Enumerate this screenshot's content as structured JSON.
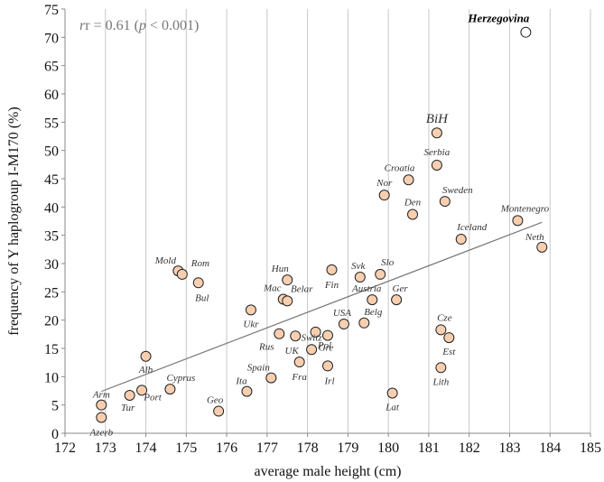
{
  "chart_data": {
    "type": "scatter",
    "title": "",
    "xlabel": "average male height (cm)",
    "ylabel": "frequency of Y haplogroup I-M170 (%)",
    "xlim": [
      172,
      185
    ],
    "ylim": [
      0,
      75
    ],
    "xticks": [
      "172",
      "173",
      "174",
      "175",
      "176",
      "177",
      "178",
      "179",
      "180",
      "181",
      "182",
      "183",
      "184",
      "185"
    ],
    "yticks": [
      "0",
      "5",
      "10",
      "15",
      "20",
      "25",
      "30",
      "35",
      "40",
      "45",
      "50",
      "55",
      "60",
      "65",
      "70",
      "75"
    ],
    "grid": "vertical",
    "annotation": {
      "r_text": "r = 0.61 (",
      "p_sym": "p",
      "p_rest": " < 0.001)"
    },
    "trendline": {
      "x": [
        172.9,
        183.8
      ],
      "y": [
        7.4,
        37.3
      ]
    },
    "marker_fill": "#f7cfb0",
    "outlier_fill": "#ffffff",
    "points": [
      {
        "label": "Arm",
        "x": 172.9,
        "y": 5.0
      },
      {
        "label": "Azerb",
        "x": 172.9,
        "y": 2.8
      },
      {
        "label": "Tur",
        "x": 173.6,
        "y": 6.7
      },
      {
        "label": "Port",
        "x": 173.9,
        "y": 7.6
      },
      {
        "label": "Alb",
        "x": 174.0,
        "y": 13.6
      },
      {
        "label": "Cyprus",
        "x": 174.6,
        "y": 7.8
      },
      {
        "label": "Mold",
        "x": 174.8,
        "y": 28.7
      },
      {
        "label": "Rom",
        "x": 174.9,
        "y": 28.1
      },
      {
        "label": "Bul",
        "x": 175.3,
        "y": 26.6
      },
      {
        "label": "Geo",
        "x": 175.8,
        "y": 3.9
      },
      {
        "label": "Ita",
        "x": 176.5,
        "y": 7.4
      },
      {
        "label": "Ukr",
        "x": 176.6,
        "y": 21.8
      },
      {
        "label": "Spain",
        "x": 177.1,
        "y": 9.8
      },
      {
        "label": "Rus",
        "x": 177.3,
        "y": 17.6
      },
      {
        "label": "Mac",
        "x": 177.4,
        "y": 23.7
      },
      {
        "label": "Hun",
        "x": 177.5,
        "y": 27.1
      },
      {
        "label": "Belar",
        "x": 177.5,
        "y": 23.4
      },
      {
        "label": "UK",
        "x": 177.7,
        "y": 17.2
      },
      {
        "label": "Fra",
        "x": 177.8,
        "y": 12.6
      },
      {
        "label": "Switz",
        "x": 178.1,
        "y": 14.8
      },
      {
        "label": "Pol",
        "x": 178.2,
        "y": 17.9
      },
      {
        "label": "Gre",
        "x": 178.5,
        "y": 17.3
      },
      {
        "label": "Irl",
        "x": 178.5,
        "y": 11.9
      },
      {
        "label": "Fin",
        "x": 178.6,
        "y": 28.9
      },
      {
        "label": "USA",
        "x": 178.9,
        "y": 19.3
      },
      {
        "label": "Svk",
        "x": 179.3,
        "y": 27.6
      },
      {
        "label": "Belg",
        "x": 179.4,
        "y": 19.5
      },
      {
        "label": "Austria",
        "x": 179.6,
        "y": 23.6
      },
      {
        "label": "Slo",
        "x": 179.8,
        "y": 28.1
      },
      {
        "label": "Lat",
        "x": 180.1,
        "y": 7.1
      },
      {
        "label": "Ger",
        "x": 180.2,
        "y": 23.6
      },
      {
        "label": "Nor",
        "x": 179.9,
        "y": 42.1
      },
      {
        "label": "Croatia",
        "x": 180.5,
        "y": 44.8
      },
      {
        "label": "Den",
        "x": 180.6,
        "y": 38.7
      },
      {
        "label": "BiH",
        "x": 181.2,
        "y": 53.1
      },
      {
        "label": "Serbia",
        "x": 181.2,
        "y": 47.4
      },
      {
        "label": "Lith",
        "x": 181.3,
        "y": 11.6
      },
      {
        "label": "Cze",
        "x": 181.3,
        "y": 18.3
      },
      {
        "label": "Sweden",
        "x": 181.4,
        "y": 41.0
      },
      {
        "label": "Est",
        "x": 181.5,
        "y": 16.9
      },
      {
        "label": "Iceland",
        "x": 181.8,
        "y": 34.3
      },
      {
        "label": "Montenegro",
        "x": 183.2,
        "y": 37.6
      },
      {
        "label": "Herzegovina",
        "x": 183.4,
        "y": 70.9
      },
      {
        "label": "Neth",
        "x": 183.8,
        "y": 32.9
      }
    ]
  }
}
